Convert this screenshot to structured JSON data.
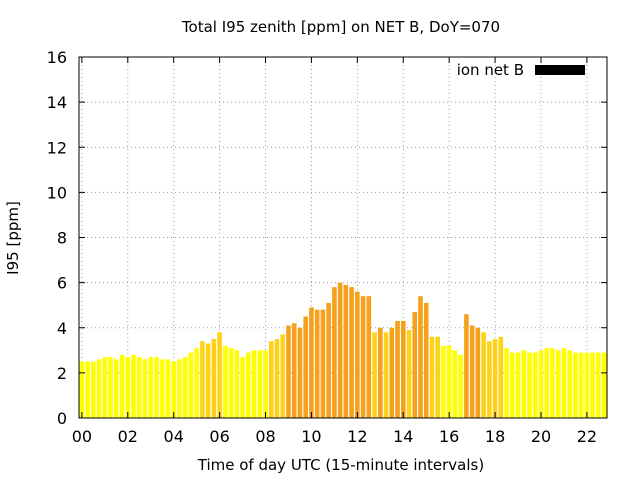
{
  "chart_data": {
    "type": "bar",
    "title": "Total I95 zenith [ppm] on NET B, DoY=070",
    "xlabel": "Time of day UTC (15-minute intervals)",
    "ylabel": "I95 [ppm]",
    "ylim": [
      0,
      16
    ],
    "xlim": [
      0,
      22.75
    ],
    "grid": true,
    "legend_position": "top-right",
    "y_ticks": [
      0,
      2,
      4,
      6,
      8,
      10,
      12,
      14,
      16
    ],
    "x_ticks": [
      "00",
      "02",
      "04",
      "06",
      "08",
      "10",
      "12",
      "14",
      "16",
      "18",
      "20",
      "22"
    ],
    "colors": {
      "low": "#ffff00",
      "mid": "#ffd21a",
      "high": "#f5a11b",
      "legend": "#000000"
    },
    "series": [
      {
        "name": "ion net B",
        "x": [
          0.0,
          0.25,
          0.5,
          0.75,
          1.0,
          1.25,
          1.5,
          1.75,
          2.0,
          2.25,
          2.5,
          2.75,
          3.0,
          3.25,
          3.5,
          3.75,
          4.0,
          4.25,
          4.5,
          4.75,
          5.0,
          5.25,
          5.5,
          5.75,
          6.0,
          6.25,
          6.5,
          6.75,
          7.0,
          7.25,
          7.5,
          7.75,
          8.0,
          8.25,
          8.5,
          8.75,
          9.0,
          9.25,
          9.5,
          9.75,
          10.0,
          10.25,
          10.5,
          10.75,
          11.0,
          11.25,
          11.5,
          11.75,
          12.0,
          12.25,
          12.5,
          12.75,
          13.0,
          13.25,
          13.5,
          13.75,
          14.0,
          14.25,
          14.5,
          14.75,
          15.0,
          15.25,
          15.5,
          15.75,
          16.0,
          16.25,
          16.5,
          16.75,
          17.0,
          17.25,
          17.5,
          17.75,
          18.0,
          18.25,
          18.5,
          18.75,
          19.0,
          19.25,
          19.5,
          19.75,
          20.0,
          20.25,
          20.5,
          20.75,
          21.0,
          21.25,
          21.5,
          21.75,
          22.0,
          22.25,
          22.5,
          22.75
        ],
        "values": [
          2.5,
          2.5,
          2.5,
          2.6,
          2.7,
          2.7,
          2.6,
          2.8,
          2.7,
          2.8,
          2.7,
          2.6,
          2.7,
          2.7,
          2.6,
          2.6,
          2.5,
          2.6,
          2.7,
          2.9,
          3.1,
          3.4,
          3.3,
          3.5,
          3.8,
          3.2,
          3.1,
          3.0,
          2.7,
          2.9,
          3.0,
          3.0,
          3.0,
          3.4,
          3.5,
          3.7,
          4.1,
          4.2,
          4.0,
          4.5,
          4.9,
          4.8,
          4.8,
          5.1,
          5.8,
          6.0,
          5.9,
          5.8,
          5.6,
          5.4,
          5.4,
          3.8,
          4.0,
          3.8,
          4.0,
          4.3,
          4.3,
          3.9,
          4.7,
          5.4,
          5.1,
          3.6,
          3.6,
          3.2,
          3.2,
          3.0,
          2.8,
          4.6,
          4.1,
          4.0,
          3.8,
          3.4,
          3.5,
          3.6,
          3.1,
          2.9,
          2.9,
          3.0,
          2.9,
          2.9,
          3.0,
          3.1,
          3.1,
          3.0,
          3.1,
          3.0,
          2.9,
          2.9,
          2.9,
          2.9,
          2.9,
          2.9
        ]
      }
    ]
  }
}
